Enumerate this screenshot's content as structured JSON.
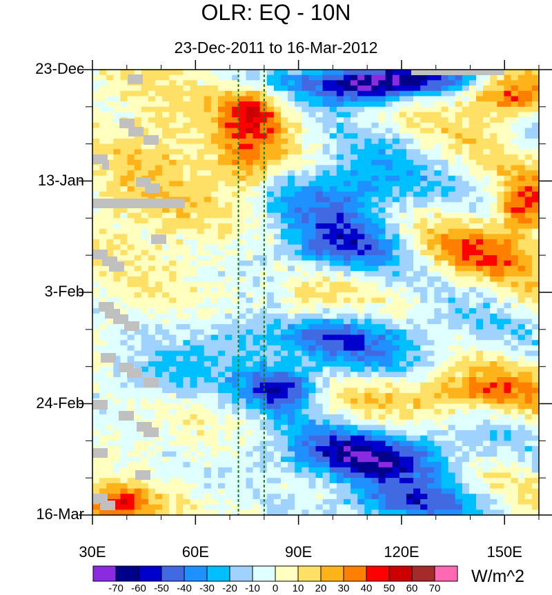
{
  "chart_data": {
    "type": "heatmap",
    "title": "OLR: EQ - 10N",
    "subtitle": "23-Dec-2011 to 16-Mar-2012",
    "units": "W/m^2",
    "x_axis": {
      "range": [
        30,
        160
      ],
      "ticks": [
        30,
        60,
        90,
        120,
        150
      ],
      "tick_labels": [
        "30E",
        "60E",
        "90E",
        "120E",
        "150E"
      ]
    },
    "y_axis": {
      "range_days": [
        0,
        84
      ],
      "ticks_days": [
        0,
        21,
        42,
        63,
        84
      ],
      "tick_labels": [
        "23-Dec",
        "13-Jan",
        "3-Feb",
        "24-Feb",
        "16-Mar"
      ],
      "direction": "time increases downward"
    },
    "reference_lines_lon": [
      72.5,
      80
    ],
    "colorbar": {
      "labels": [
        "-70",
        "-60",
        "-50",
        "-40",
        "-30",
        "-20",
        "-10",
        "0",
        "10",
        "20",
        "30",
        "40",
        "50",
        "60",
        "70"
      ],
      "colors": [
        "#8a2be2",
        "#00008b",
        "#0000cd",
        "#4169e1",
        "#1e90ff",
        "#00bfff",
        "#a0d2ff",
        "#e0ffff",
        "#ffffc0",
        "#ffe066",
        "#ffb31a",
        "#ff7f00",
        "#ff0000",
        "#cc0000",
        "#a52a2a",
        "#ff69b4"
      ]
    },
    "missing_color": "#c0c0c0",
    "anomaly_features": [
      {
        "lon": [
          70,
          85
        ],
        "day": [
          4,
          12
        ],
        "value": 40
      },
      {
        "lon": [
          68,
          82
        ],
        "day": [
          12,
          22
        ],
        "value": 30
      },
      {
        "lon": [
          30,
          70
        ],
        "day": [
          2,
          36
        ],
        "value": 15
      },
      {
        "lon": [
          140,
          160
        ],
        "day": [
          2,
          8
        ],
        "value": 45
      },
      {
        "lon": [
          150,
          160
        ],
        "day": [
          22,
          30
        ],
        "value": 45
      },
      {
        "lon": [
          125,
          160
        ],
        "day": [
          30,
          38
        ],
        "value": 30
      },
      {
        "lon": [
          115,
          160
        ],
        "day": [
          58,
          64
        ],
        "value": 35
      },
      {
        "lon": [
          83,
          100
        ],
        "day": [
          42,
          48
        ],
        "value": 25
      },
      {
        "lon": [
          30,
          45
        ],
        "day": [
          80,
          84
        ],
        "value": 45
      },
      {
        "lon": [
          80,
          145
        ],
        "day": [
          0,
          3
        ],
        "value": -50
      },
      {
        "lon": [
          95,
          125
        ],
        "day": [
          2,
          6
        ],
        "value": -55
      },
      {
        "lon": [
          85,
          125
        ],
        "day": [
          16,
          30
        ],
        "value": -45
      },
      {
        "lon": [
          80,
          120
        ],
        "day": [
          30,
          38
        ],
        "value": -40
      },
      {
        "lon": [
          60,
          140
        ],
        "day": [
          46,
          56
        ],
        "value": -40
      },
      {
        "lon": [
          75,
          95
        ],
        "day": [
          57,
          63
        ],
        "value": -55
      },
      {
        "lon": [
          82,
          140
        ],
        "day": [
          68,
          78
        ],
        "value": -60
      },
      {
        "lon": [
          100,
          140
        ],
        "day": [
          80,
          84
        ],
        "value": -45
      },
      {
        "lon": [
          30,
          70
        ],
        "day": [
          54,
          62
        ],
        "value": -20
      }
    ]
  }
}
